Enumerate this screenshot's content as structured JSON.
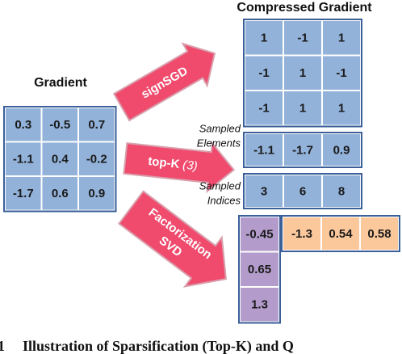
{
  "gradient": {
    "title": "Gradient",
    "cells": [
      [
        "0.3",
        "-0.5",
        "0.7"
      ],
      [
        "-1.1",
        "0.4",
        "-0.2"
      ],
      [
        "-1.7",
        "0.6",
        "0.9"
      ]
    ]
  },
  "compressed": {
    "title": "Compressed Gradient"
  },
  "sign_sgd": {
    "label": "signSGD",
    "cells": [
      [
        "1",
        "-1",
        "1"
      ],
      [
        "-1",
        "1",
        "-1"
      ],
      [
        "-1",
        "1",
        "1"
      ]
    ]
  },
  "top_k": {
    "label": "top-K",
    "param": "(3)",
    "elements_label": [
      "Sampled",
      "Elements"
    ],
    "elements": [
      "-1.1",
      "-1.7",
      "0.9"
    ],
    "indices_label": [
      "Sampled",
      "Indices"
    ],
    "indices": [
      "3",
      "6",
      "8"
    ]
  },
  "svd": {
    "label": [
      "Factorization",
      "SVD"
    ],
    "u": [
      "-0.45",
      "0.65",
      "1.3"
    ],
    "v": [
      "-1.3",
      "0.54",
      "0.58"
    ]
  },
  "caption": {
    "number": "1",
    "text": "Illustration of Sparsification (Top-K) and Q"
  }
}
